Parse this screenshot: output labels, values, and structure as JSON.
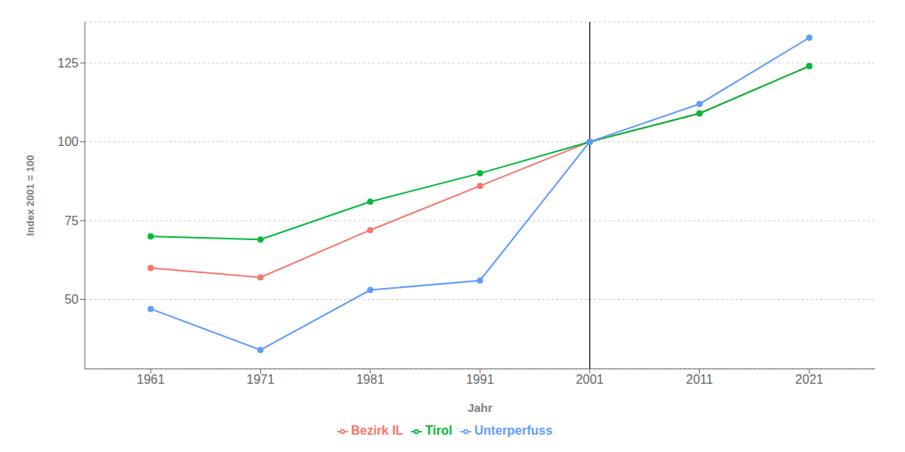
{
  "chart_data": {
    "type": "line",
    "x_label": "Jahr",
    "y_label": "Index 2001 = 100",
    "x": [
      1961,
      1971,
      1981,
      1991,
      2001,
      2011,
      2021
    ],
    "series": [
      {
        "name": "Bezirk IL",
        "color": "#F8766D",
        "values": [
          60,
          57,
          72,
          86,
          100,
          109,
          124
        ]
      },
      {
        "name": "Tirol",
        "color": "#00BA38",
        "values": [
          70,
          69,
          81,
          90,
          100,
          109,
          124
        ]
      },
      {
        "name": "Unterperfuss",
        "color": "#619CFF",
        "values": [
          47,
          34,
          53,
          56,
          100,
          112,
          133
        ]
      }
    ],
    "xlim": [
      1955,
      2027
    ],
    "xticks": [
      1961,
      1971,
      1981,
      1991,
      2001,
      2011,
      2021
    ],
    "ylim": [
      28,
      138
    ],
    "yticks": [
      50,
      75,
      100,
      125
    ],
    "vline": 2001,
    "grid": "y",
    "legend": "bottom",
    "marker": "circle"
  }
}
